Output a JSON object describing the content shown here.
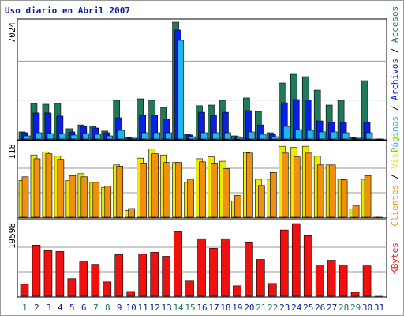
{
  "chart_data": [
    {
      "type": "bar",
      "title": "Uso diario en Abril 2007",
      "legend_separator": " / ",
      "ylim": [
        0,
        7024
      ],
      "yticks": [
        7024
      ],
      "series": [
        {
          "name": "Accesos",
          "color": "#1e7a5a",
          "values": [
            430,
            2140,
            2090,
            2140,
            620,
            850,
            760,
            480,
            2330,
            95,
            2420,
            2330,
            1900,
            7024,
            285,
            2000,
            2040,
            2330,
            190,
            2470,
            1660,
            380,
            3370,
            3890,
            3750,
            2940,
            2040,
            2330,
            95,
            3510,
            0
          ]
        },
        {
          "name": "Archivos",
          "color": "#0a1ee6",
          "values": [
            380,
            1570,
            1570,
            1380,
            430,
            760,
            665,
            380,
            1280,
            50,
            1420,
            1420,
            1190,
            6550,
            240,
            1610,
            1420,
            1610,
            140,
            1710,
            850,
            285,
            2180,
            2375,
            2330,
            1090,
            1000,
            1000,
            50,
            1000,
            0
          ]
        },
        {
          "name": "Páginas",
          "color": "#20b4f0",
          "values": [
            190,
            380,
            330,
            330,
            240,
            330,
            285,
            190,
            520,
            50,
            380,
            380,
            380,
            5935,
            140,
            380,
            380,
            380,
            95,
            430,
            285,
            140,
            760,
            570,
            520,
            430,
            430,
            380,
            50,
            380,
            0
          ]
        }
      ]
    },
    {
      "type": "bar",
      "legend_separator": " / ",
      "ylim": [
        0,
        118
      ],
      "yticks": [
        118
      ],
      "series": [
        {
          "name": "Visitas",
          "color": "#f0e800",
          "values": [
            59,
            100,
            105,
            98,
            59,
            70,
            56,
            48,
            84,
            11,
            95,
            110,
            100,
            88,
            56,
            94,
            97,
            90,
            26,
            104,
            61,
            61,
            114,
            112,
            114,
            98,
            84,
            61,
            13,
            61,
            0
          ]
        },
        {
          "name": "Clientes",
          "color": "#f09010",
          "values": [
            65,
            94,
            102,
            93,
            67,
            65,
            56,
            50,
            82,
            14,
            87,
            102,
            88,
            88,
            61,
            89,
            87,
            78,
            35,
            103,
            51,
            72,
            103,
            97,
            103,
            84,
            84,
            60,
            19,
            67,
            0
          ]
        }
      ]
    },
    {
      "type": "bar",
      "ylim": [
        0,
        19598
      ],
      "yticks": [
        19598
      ],
      "categories": [
        "1",
        "2",
        "3",
        "4",
        "5",
        "6",
        "7",
        "8",
        "9",
        "10",
        "11",
        "12",
        "13",
        "14",
        "15",
        "16",
        "17",
        "18",
        "19",
        "20",
        "21",
        "22",
        "23",
        "24",
        "25",
        "26",
        "27",
        "28",
        "29",
        "30",
        "31"
      ],
      "category_colors": [
        "#1e7a5a",
        "#0a1e96",
        "#0a1e96",
        "#0a1e96",
        "#0a1e96",
        "#0a1e96",
        "#1e7a5a",
        "#1e7a5a",
        "#0a1e96",
        "#0a1e96",
        "#0a1e96",
        "#0a1e96",
        "#0a1e96",
        "#1e7a5a",
        "#1e7a5a",
        "#0a1e96",
        "#0a1e96",
        "#0a1e96",
        "#0a1e96",
        "#0a1e96",
        "#1e7a5a",
        "#1e7a5a",
        "#0a1e96",
        "#0a1e96",
        "#0a1e96",
        "#0a1e96",
        "#0a1e96",
        "#1e7a5a",
        "#1e7a5a",
        "#0a1e96",
        "#0a1e96"
      ],
      "series": [
        {
          "name": "KBytes",
          "color": "#f01010",
          "values": [
            3200,
            13630,
            12140,
            11930,
            4690,
            9160,
            8520,
            3830,
            11080,
            1280,
            11290,
            11720,
            10650,
            17250,
            4050,
            15340,
            12780,
            15340,
            2770,
            14480,
            9800,
            3410,
            17680,
            19380,
            16190,
            8310,
            9590,
            8310,
            1070,
            8090,
            0
          ]
        }
      ]
    }
  ]
}
